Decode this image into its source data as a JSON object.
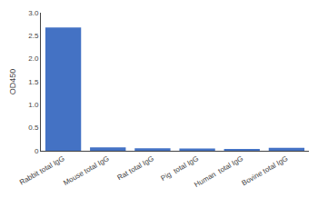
{
  "chart_data": {
    "type": "bar",
    "categories": [
      "Rabbit total IgG",
      "Mouse total IgG",
      "Rat total IgG",
      "Pig  total IgG",
      "Human  total IgG",
      "Bovine total IgG"
    ],
    "values": [
      2.68,
      0.075,
      0.055,
      0.05,
      0.03,
      0.065
    ],
    "color": "#4472c4",
    "ylabel": "OD450",
    "ylim": [
      0,
      3.0
    ],
    "yticks": [
      0,
      0.5,
      {
        "value": 1.0,
        "label": "1.0"
      },
      1.5,
      {
        "value": 2.0,
        "label": "2.0"
      },
      2.5,
      {
        "value": 3.0,
        "label": "3.0"
      }
    ],
    "grid": false
  }
}
